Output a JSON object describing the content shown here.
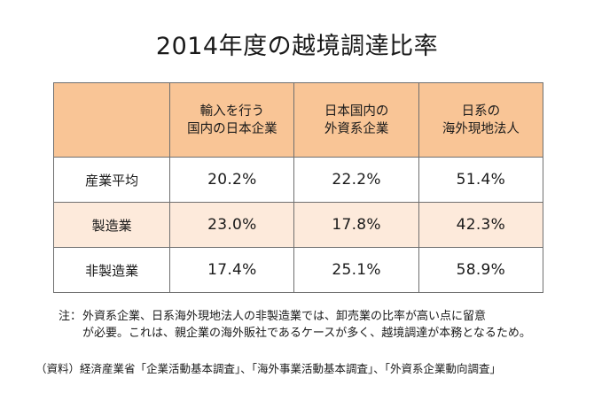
{
  "title": "2014年度の越境調達比率",
  "table": {
    "header": {
      "corner": "",
      "columns": [
        {
          "line1": "輸入を行う",
          "line2": "国内の日本企業"
        },
        {
          "line1": "日本国内の",
          "line2": "外資系企業"
        },
        {
          "line1": "日系の",
          "line2": "海外現地法人"
        }
      ]
    },
    "rows": [
      {
        "label": "産業平均",
        "values": [
          "20.2%",
          "22.2%",
          "51.4%"
        ]
      },
      {
        "label": "製造業",
        "values": [
          "23.0%",
          "17.8%",
          "42.3%"
        ]
      },
      {
        "label": "非製造業",
        "values": [
          "17.4%",
          "25.1%",
          "58.9%"
        ]
      }
    ]
  },
  "note": {
    "head": "注：",
    "line1": "外資系企業、日系海外現地法人の非製造業では、卸売業の比率が高い点に留意",
    "line2": "が必要。これは、親企業の海外販社であるケースが多く、越境調達が本務となるため。"
  },
  "source": "（資料）経済産業省「企業活動基本調査」、「海外事業活動基本調査」、「外資系企業動向調査」",
  "colors": {
    "header_bg": "#f9c596",
    "peach_row_bg": "#fdeadb",
    "border": "#6f6f6f"
  }
}
